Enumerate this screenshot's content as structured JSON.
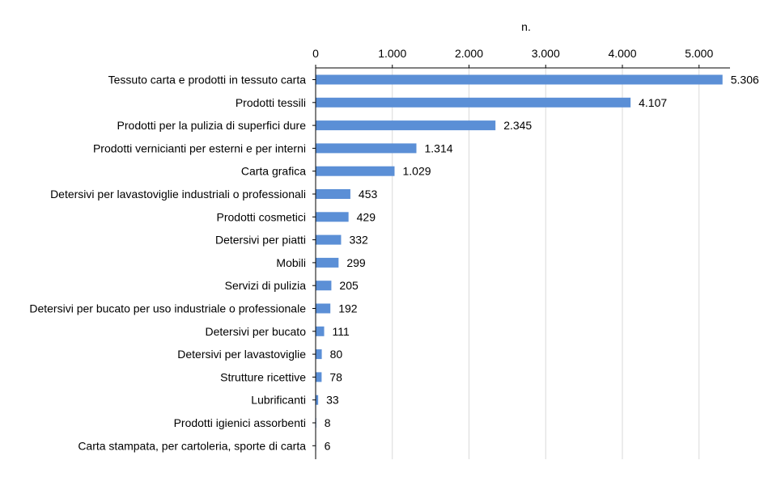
{
  "chart_data": {
    "type": "bar",
    "orientation": "horizontal",
    "xlabel": "n.",
    "xlim": [
      0,
      5400
    ],
    "xticks": [
      {
        "value": 0,
        "label": "0"
      },
      {
        "value": 1000,
        "label": "1.000"
      },
      {
        "value": 2000,
        "label": "2.000"
      },
      {
        "value": 3000,
        "label": "3.000"
      },
      {
        "value": 4000,
        "label": "4.000"
      },
      {
        "value": 5000,
        "label": "5.000"
      }
    ],
    "axis_position": "top",
    "grid": "vertical",
    "bar_color": "#5B8FD6",
    "categories": [
      "Tessuto carta e prodotti in tessuto carta",
      "Prodotti tessili",
      "Prodotti per la pulizia di superfici dure",
      "Prodotti vernicianti per esterni e per interni",
      "Carta grafica",
      "Detersivi per lavastoviglie industriali o professionali",
      "Prodotti cosmetici",
      "Detersivi per piatti",
      "Mobili",
      "Servizi di pulizia",
      "Detersivi per bucato per uso industriale o professionale",
      "Detersivi per bucato",
      "Detersivi per lavastoviglie",
      "Strutture ricettive",
      "Lubrificanti",
      "Prodotti igienici assorbenti",
      "Carta stampata, per cartoleria, sporte di carta"
    ],
    "values": [
      5306,
      4107,
      2345,
      1314,
      1029,
      453,
      429,
      332,
      299,
      205,
      192,
      111,
      80,
      78,
      33,
      8,
      6
    ],
    "value_labels": [
      "5.306",
      "4.107",
      "2.345",
      "1.314",
      "1.029",
      "453",
      "429",
      "332",
      "299",
      "205",
      "192",
      "111",
      "80",
      "78",
      "33",
      "8",
      "6"
    ]
  }
}
